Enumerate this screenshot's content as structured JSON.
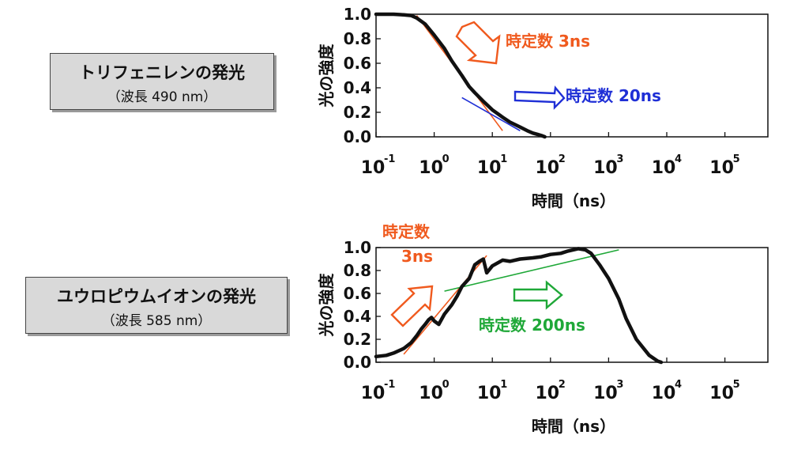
{
  "panels": [
    {
      "label_main": "トリフェニレンの発光",
      "label_sub": "（波長 490 nm）"
    },
    {
      "label_main": "ユウロピウムイオンの発光",
      "label_sub": "（波長 585 nm）"
    }
  ],
  "colors": {
    "line": "#111111",
    "orange": "#f05a1e",
    "blue": "#1f2fd6",
    "green": "#1fa838"
  },
  "chart_data": [
    {
      "type": "line",
      "xlabel": "時間（ns）",
      "ylabel": "光の強度",
      "xscale": "log",
      "xlim": [
        0.1,
        500000
      ],
      "ylim": [
        0,
        1
      ],
      "yticks": [
        "0.0",
        "0.2",
        "0.4",
        "0.6",
        "0.8",
        "1.0"
      ],
      "xticks": [
        {
          "base": "10",
          "exp": "-1"
        },
        {
          "base": "10",
          "exp": "0"
        },
        {
          "base": "10",
          "exp": "1"
        },
        {
          "base": "10",
          "exp": "2"
        },
        {
          "base": "10",
          "exp": "3"
        },
        {
          "base": "10",
          "exp": "4"
        },
        {
          "base": "10",
          "exp": "5"
        }
      ],
      "series": [
        {
          "x": [
            0.1,
            0.2,
            0.3,
            0.4,
            0.5,
            0.7,
            1,
            1.5,
            2,
            3,
            4,
            5,
            7,
            10,
            15,
            20,
            30,
            40,
            50,
            60,
            70,
            80
          ],
          "y": [
            1.0,
            1.0,
            0.995,
            0.99,
            0.97,
            0.92,
            0.83,
            0.72,
            0.62,
            0.5,
            0.41,
            0.36,
            0.29,
            0.22,
            0.16,
            0.12,
            0.08,
            0.05,
            0.03,
            0.02,
            0.01,
            0.0
          ]
        }
      ],
      "fits": [
        {
          "x": [
            0.5,
            15
          ],
          "y": [
            0.99,
            0.05
          ],
          "color": "orange"
        },
        {
          "x": [
            3,
            30
          ],
          "y": [
            0.32,
            0.05
          ],
          "color": "blue"
        }
      ],
      "annotations": [
        {
          "text": "時定数 3ns",
          "color": "orange"
        },
        {
          "text": "時定数 20ns",
          "color": "blue"
        }
      ]
    },
    {
      "type": "line",
      "xlabel": "時間（ns）",
      "ylabel": "光の強度",
      "xscale": "log",
      "xlim": [
        0.1,
        500000
      ],
      "ylim": [
        0,
        1
      ],
      "yticks": [
        "0.0",
        "0.2",
        "0.4",
        "0.6",
        "0.8",
        "1.0"
      ],
      "xticks": [
        {
          "base": "10",
          "exp": "-1"
        },
        {
          "base": "10",
          "exp": "0"
        },
        {
          "base": "10",
          "exp": "1"
        },
        {
          "base": "10",
          "exp": "2"
        },
        {
          "base": "10",
          "exp": "3"
        },
        {
          "base": "10",
          "exp": "4"
        },
        {
          "base": "10",
          "exp": "5"
        }
      ],
      "series": [
        {
          "x": [
            0.1,
            0.15,
            0.2,
            0.3,
            0.4,
            0.5,
            0.6,
            0.7,
            0.8,
            0.9,
            1,
            1.2,
            1.5,
            2,
            2.5,
            3,
            4,
            5,
            6,
            7,
            8,
            10,
            15,
            20,
            30,
            50,
            70,
            100,
            150,
            200,
            300,
            400,
            500,
            700,
            1000,
            1500,
            2000,
            3000,
            5000,
            7000,
            8000
          ],
          "y": [
            0.05,
            0.06,
            0.08,
            0.12,
            0.17,
            0.23,
            0.29,
            0.33,
            0.37,
            0.39,
            0.36,
            0.33,
            0.42,
            0.5,
            0.58,
            0.66,
            0.73,
            0.85,
            0.88,
            0.9,
            0.78,
            0.84,
            0.89,
            0.88,
            0.9,
            0.91,
            0.92,
            0.94,
            0.95,
            0.97,
            0.99,
            0.98,
            0.95,
            0.85,
            0.73,
            0.55,
            0.38,
            0.2,
            0.06,
            0.01,
            0.0
          ]
        }
      ],
      "fits": [
        {
          "x": [
            0.3,
            8
          ],
          "y": [
            0.07,
            0.93
          ],
          "color": "orange"
        },
        {
          "x": [
            1.5,
            1500
          ],
          "y": [
            0.62,
            0.98
          ],
          "color": "green"
        }
      ],
      "annotations": [
        {
          "text": "時定数",
          "color": "orange"
        },
        {
          "text": "3ns",
          "color": "orange"
        },
        {
          "text": "時定数 200ns",
          "color": "green"
        }
      ]
    }
  ]
}
